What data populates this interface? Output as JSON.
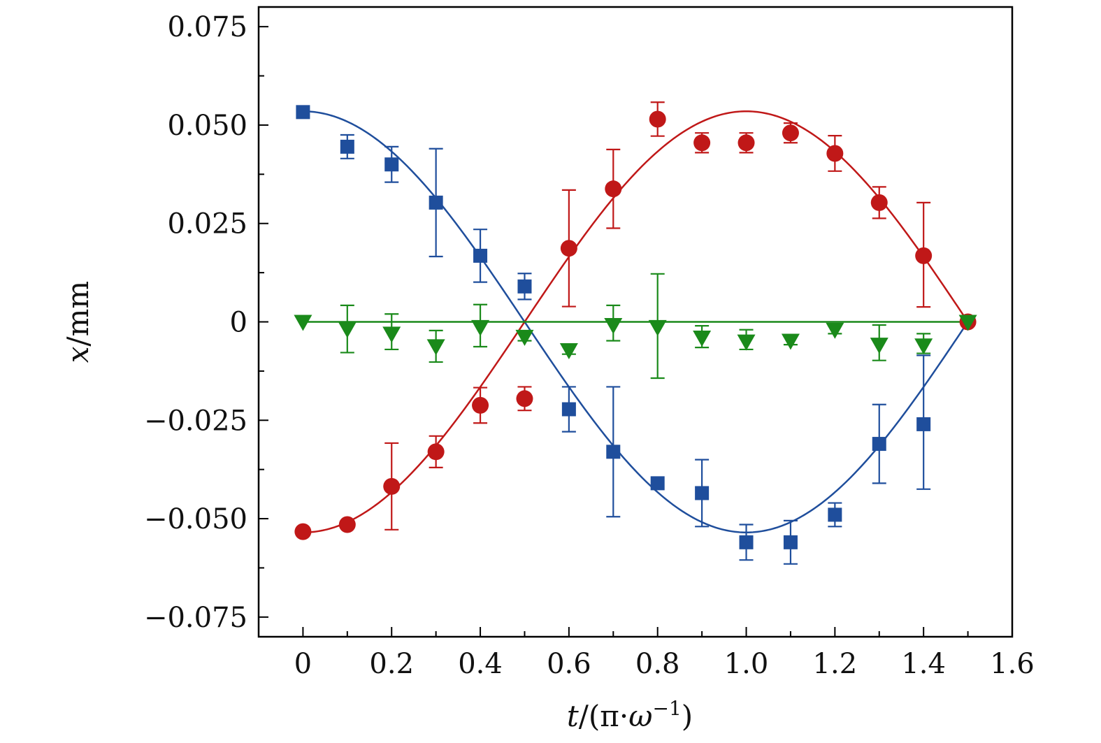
{
  "chart_data": {
    "type": "scatter",
    "title": "",
    "xlabel": {
      "var": "t",
      "unit_prefix": "(π·",
      "unit_var": "ω",
      "unit_exp": "−1",
      "unit_suffix": ")"
    },
    "ylabel": {
      "var": "x",
      "unit": "mm"
    },
    "xlim": [
      -0.1,
      1.6
    ],
    "ylim": [
      -0.08,
      0.08
    ],
    "x_ticks": [
      0,
      0.2,
      0.4,
      0.6,
      0.8,
      1.0,
      1.2,
      1.4,
      1.6
    ],
    "x_tick_labels": [
      "0",
      "0.2",
      "0.4",
      "0.6",
      "0.8",
      "1.0",
      "1.2",
      "1.4",
      "1.6"
    ],
    "y_ticks": [
      0.075,
      0.05,
      0.025,
      0,
      -0.025,
      -0.05,
      -0.075
    ],
    "y_tick_labels": [
      "0.075",
      "0.050",
      "0.025",
      "0",
      "−0.025",
      "−0.050",
      "−0.075"
    ],
    "y_minor_ticks": [
      0.0625,
      0.0375,
      0.0125,
      -0.0125,
      -0.0375,
      -0.0625
    ],
    "x_minor_ticks": [
      0.1,
      0.3,
      0.5,
      0.7,
      0.9,
      1.1,
      1.3,
      1.5
    ],
    "grid": false,
    "series": [
      {
        "name": "blue squares",
        "color": "#1f4e9c",
        "marker": "square",
        "x": [
          0,
          0.1,
          0.2,
          0.3,
          0.4,
          0.5,
          0.6,
          0.7,
          0.8,
          0.9,
          1.0,
          1.1,
          1.2,
          1.3,
          1.4
        ],
        "y": [
          0.0533,
          0.0445,
          0.04,
          0.0303,
          0.0168,
          0.009,
          -0.0222,
          -0.033,
          -0.041,
          -0.0435,
          -0.056,
          -0.056,
          -0.049,
          -0.031,
          -0.026
        ],
        "err_up": [
          0,
          0.003,
          0.0045,
          0.0137,
          0.0067,
          0.0033,
          0.0057,
          0.0165,
          0,
          0.0085,
          0.0045,
          0.0055,
          0.003,
          0.01,
          0.0175
        ],
        "err_down": [
          0,
          0.003,
          0.0045,
          0.0137,
          0.0067,
          0.0033,
          0.0057,
          0.0165,
          0,
          0.0085,
          0.0045,
          0.0055,
          0.003,
          0.01,
          0.0165
        ],
        "fit": {
          "type": "cosine",
          "amplitude": 0.0535,
          "period": 2.0,
          "phase": 0
        }
      },
      {
        "name": "red circles",
        "color": "#c01818",
        "marker": "circle",
        "x": [
          0,
          0.1,
          0.2,
          0.3,
          0.4,
          0.5,
          0.6,
          0.7,
          0.8,
          0.9,
          1.0,
          1.1,
          1.2,
          1.3,
          1.4,
          1.5
        ],
        "y": [
          -0.0533,
          -0.0515,
          -0.0418,
          -0.033,
          -0.0212,
          -0.0195,
          0.0187,
          0.0338,
          0.0515,
          0.0455,
          0.0455,
          0.048,
          0.0428,
          0.0303,
          0.0168,
          0
        ],
        "err_up": [
          0,
          0,
          0.011,
          0.004,
          0.0045,
          0.003,
          0.0148,
          0.01,
          0.0043,
          0.0025,
          0.0025,
          0.0025,
          0.0045,
          0.004,
          0.0135,
          0
        ],
        "err_down": [
          0,
          0,
          0.011,
          0.004,
          0.0045,
          0.003,
          0.0148,
          0.01,
          0.0043,
          0.0025,
          0.0025,
          0.0025,
          0.0045,
          0.004,
          0.013,
          0
        ],
        "fit": {
          "type": "cosine",
          "amplitude": -0.0535,
          "period": 2.0,
          "phase": 0
        }
      },
      {
        "name": "green triangles",
        "color": "#1a8a1a",
        "marker": "triangle-down",
        "x": [
          0,
          0.1,
          0.2,
          0.3,
          0.4,
          0.5,
          0.6,
          0.7,
          0.8,
          0.9,
          1.0,
          1.1,
          1.2,
          1.3,
          1.4,
          1.5
        ],
        "y": [
          0,
          -0.0018,
          -0.003,
          -0.0062,
          -0.0013,
          -0.0038,
          -0.0072,
          -0.0008,
          -0.0013,
          -0.004,
          -0.005,
          -0.0048,
          -0.002,
          -0.0058,
          -0.006,
          0
        ],
        "err_up": [
          0,
          0.006,
          0.005,
          0.004,
          0.0057,
          0.001,
          0.001,
          0.005,
          0.0135,
          0.003,
          0.003,
          0.001,
          0.001,
          0.005,
          0.003,
          0
        ],
        "err_down": [
          0,
          0.006,
          0.004,
          0.004,
          0.005,
          0.001,
          0.001,
          0.004,
          0.013,
          0.0025,
          0.002,
          0.001,
          0.001,
          0.004,
          0.002,
          0
        ],
        "fit": {
          "type": "constant",
          "value": 0
        }
      }
    ]
  }
}
